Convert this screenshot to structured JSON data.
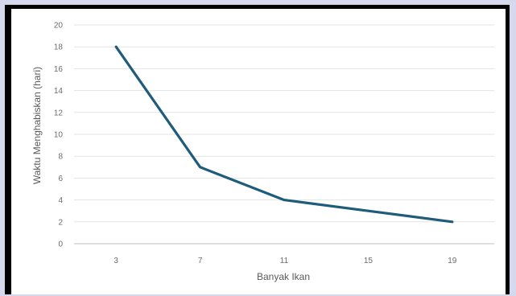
{
  "chart_data": {
    "type": "line",
    "x": [
      3,
      7,
      11,
      15,
      19
    ],
    "series": [
      {
        "values": [
          18,
          7,
          4,
          3,
          2
        ],
        "color": "#1f5b7a"
      }
    ],
    "xlabel": "Banyak Ikan",
    "ylabel": "Waktu Menghabiskan (hari)",
    "xticks": [
      "3",
      "7",
      "11",
      "15",
      "19"
    ],
    "yticks": [
      "0",
      "2",
      "4",
      "6",
      "8",
      "10",
      "12",
      "14",
      "16",
      "18",
      "20"
    ],
    "ylim": [
      0,
      20
    ],
    "grid": true,
    "legend": "none"
  }
}
